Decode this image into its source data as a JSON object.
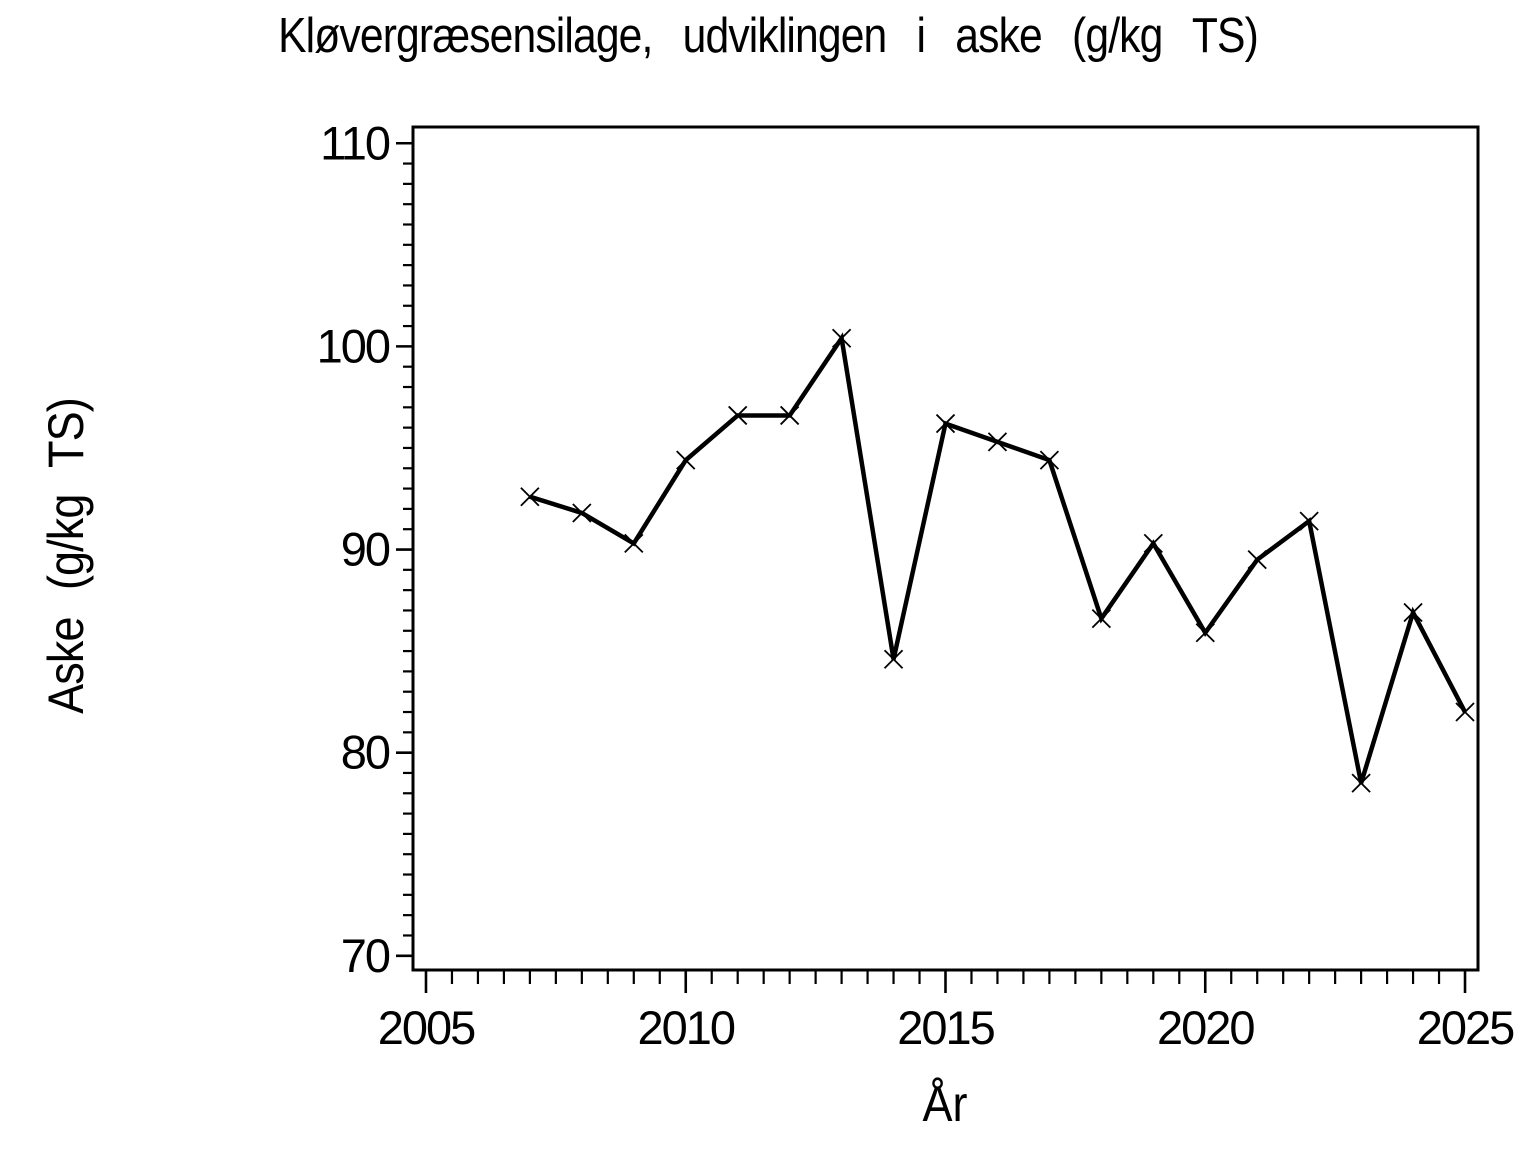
{
  "page": {
    "background_color": "#ffffff",
    "foreground_color": "#000000"
  },
  "chart_data": {
    "type": "line",
    "title": "Kløvergræsensilage, udviklingen i aske (g/kg TS)",
    "xlabel": "År",
    "ylabel": "Aske (g/kg TS)",
    "grid": "off",
    "legend": "none",
    "marker": "x",
    "line_color": "#000000",
    "x_ticks_major": [
      2005,
      2010,
      2015,
      2020,
      2025
    ],
    "x_minor_step": 0.5,
    "y_ticks_major": [
      70,
      80,
      90,
      100,
      110
    ],
    "y_minor_step": 1,
    "xlim": [
      2004.75,
      2025.25
    ],
    "ylim": [
      69.3,
      110.8
    ],
    "series": [
      {
        "name": "Aske (g/kg TS)",
        "x": [
          2007,
          2008,
          2009,
          2010,
          2011,
          2012,
          2013,
          2014,
          2015,
          2016,
          2017,
          2018,
          2019,
          2020,
          2021,
          2022,
          2023,
          2024,
          2025
        ],
        "y": [
          92.6,
          91.8,
          90.3,
          94.4,
          96.6,
          96.6,
          100.4,
          84.6,
          96.2,
          95.3,
          94.4,
          86.6,
          90.3,
          85.9,
          89.5,
          91.4,
          78.5,
          86.9,
          82.0
        ]
      }
    ]
  }
}
